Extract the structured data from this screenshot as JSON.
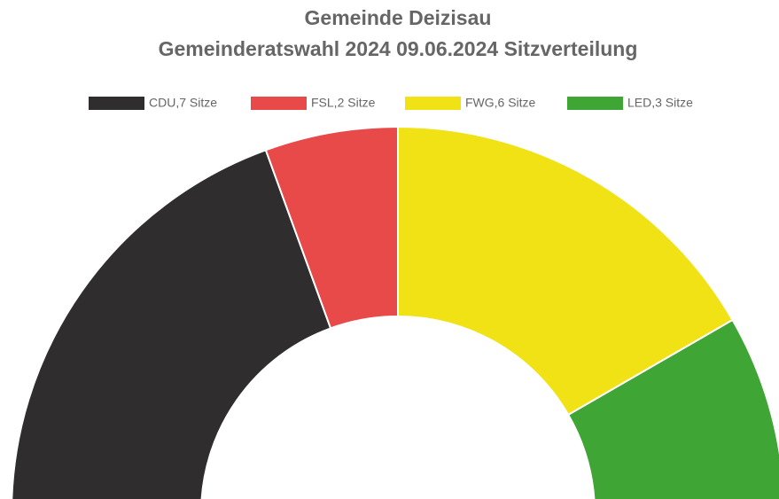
{
  "chart_data": {
    "type": "donut",
    "title": "Gemeinde Deizisau",
    "subtitle": "Gemeinderatswahl 2024 09.06.2024 Sitzverteilung",
    "categories": [
      "CDU,7 Sitze",
      "FSL,2 Sitze",
      "FWG,6 Sitze",
      "LED,3 Sitze"
    ],
    "values": [
      7,
      2,
      6,
      3
    ],
    "colors": [
      "#2f2d2e",
      "#e84a4a",
      "#f0e215",
      "#3fa535"
    ],
    "legend": "top"
  }
}
